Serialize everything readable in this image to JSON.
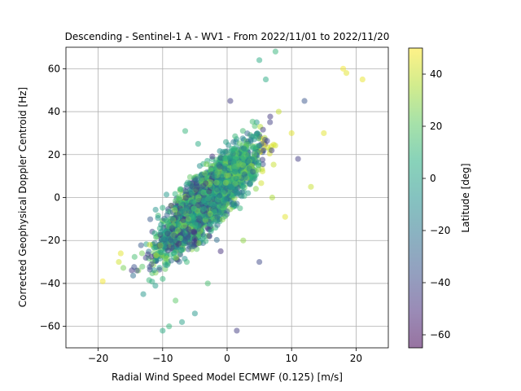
{
  "chart_data": {
    "type": "scatter",
    "title": "Descending - Sentinel-1 A - WV1 - From 2022/11/01 to 2022/11/20",
    "xlabel": "Radial Wind Speed Model ECMWF (0.125) [m/s]",
    "ylabel": "Corrected Geophysical Doppler Centroid [Hz]",
    "xlim": [
      -25,
      25
    ],
    "ylim": [
      -70,
      70
    ],
    "xticks": [
      -20,
      -10,
      0,
      10,
      20
    ],
    "yticks": [
      -60,
      -40,
      -20,
      0,
      20,
      40,
      60
    ],
    "grid": true,
    "colorbar": {
      "label": "Latitude [deg]",
      "range": [
        -65,
        50
      ],
      "ticks": [
        -60,
        -40,
        -20,
        0,
        20,
        40
      ],
      "colormap": "viridis"
    },
    "series": [
      {
        "points": [
          {
            "x": -19.3,
            "y": -39,
            "lat": 48
          },
          {
            "x": -16.5,
            "y": -26,
            "lat": 45
          },
          {
            "x": -16.8,
            "y": -30,
            "lat": 42
          },
          {
            "x": -14.0,
            "y": -34,
            "lat": -40
          },
          {
            "x": -12.0,
            "y": -22,
            "lat": 40
          },
          {
            "x": -11.0,
            "y": -27,
            "lat": 38
          },
          {
            "x": -10.0,
            "y": -62,
            "lat": 5
          },
          {
            "x": -9.0,
            "y": -60,
            "lat": 10
          },
          {
            "x": -7.0,
            "y": -58,
            "lat": 0
          },
          {
            "x": -5.0,
            "y": -54,
            "lat": -5
          },
          {
            "x": 1.5,
            "y": -62,
            "lat": -45
          },
          {
            "x": 5.0,
            "y": 64,
            "lat": 5
          },
          {
            "x": 7.5,
            "y": 68,
            "lat": 10
          },
          {
            "x": 6.0,
            "y": 55,
            "lat": 5
          },
          {
            "x": 18.0,
            "y": 60,
            "lat": 48
          },
          {
            "x": 21.0,
            "y": 55,
            "lat": 46
          },
          {
            "x": 18.5,
            "y": 58,
            "lat": 45
          },
          {
            "x": -6.5,
            "y": 31,
            "lat": 10
          },
          {
            "x": -4.5,
            "y": 25,
            "lat": 5
          },
          {
            "x": 0.5,
            "y": 45,
            "lat": -45
          },
          {
            "x": 9.0,
            "y": -9,
            "lat": 45
          },
          {
            "x": 7.0,
            "y": 0,
            "lat": 35
          },
          {
            "x": 5.0,
            "y": -30,
            "lat": -40
          },
          {
            "x": -1.0,
            "y": -25,
            "lat": -50
          },
          {
            "x": 2.5,
            "y": -20,
            "lat": 30
          },
          {
            "x": 11.0,
            "y": 18,
            "lat": -45
          },
          {
            "x": 15.0,
            "y": 30,
            "lat": 45
          },
          {
            "x": 13.0,
            "y": 5,
            "lat": 40
          },
          {
            "x": -13.0,
            "y": -45,
            "lat": -5
          },
          {
            "x": -8.0,
            "y": -48,
            "lat": 20
          },
          {
            "x": -3.0,
            "y": -40,
            "lat": 15
          },
          {
            "x": 2.0,
            "y": -5,
            "lat": 10
          },
          {
            "x": 4.0,
            "y": 12,
            "lat": -30
          },
          {
            "x": 8.0,
            "y": 40,
            "lat": 40
          },
          {
            "x": 12.0,
            "y": 45,
            "lat": -35
          },
          {
            "x": 10.0,
            "y": 30,
            "lat": 45
          },
          {
            "x": -2.0,
            "y": 10,
            "lat": 0
          },
          {
            "x": -6.0,
            "y": -10,
            "lat": 25
          }
        ]
      }
    ]
  }
}
